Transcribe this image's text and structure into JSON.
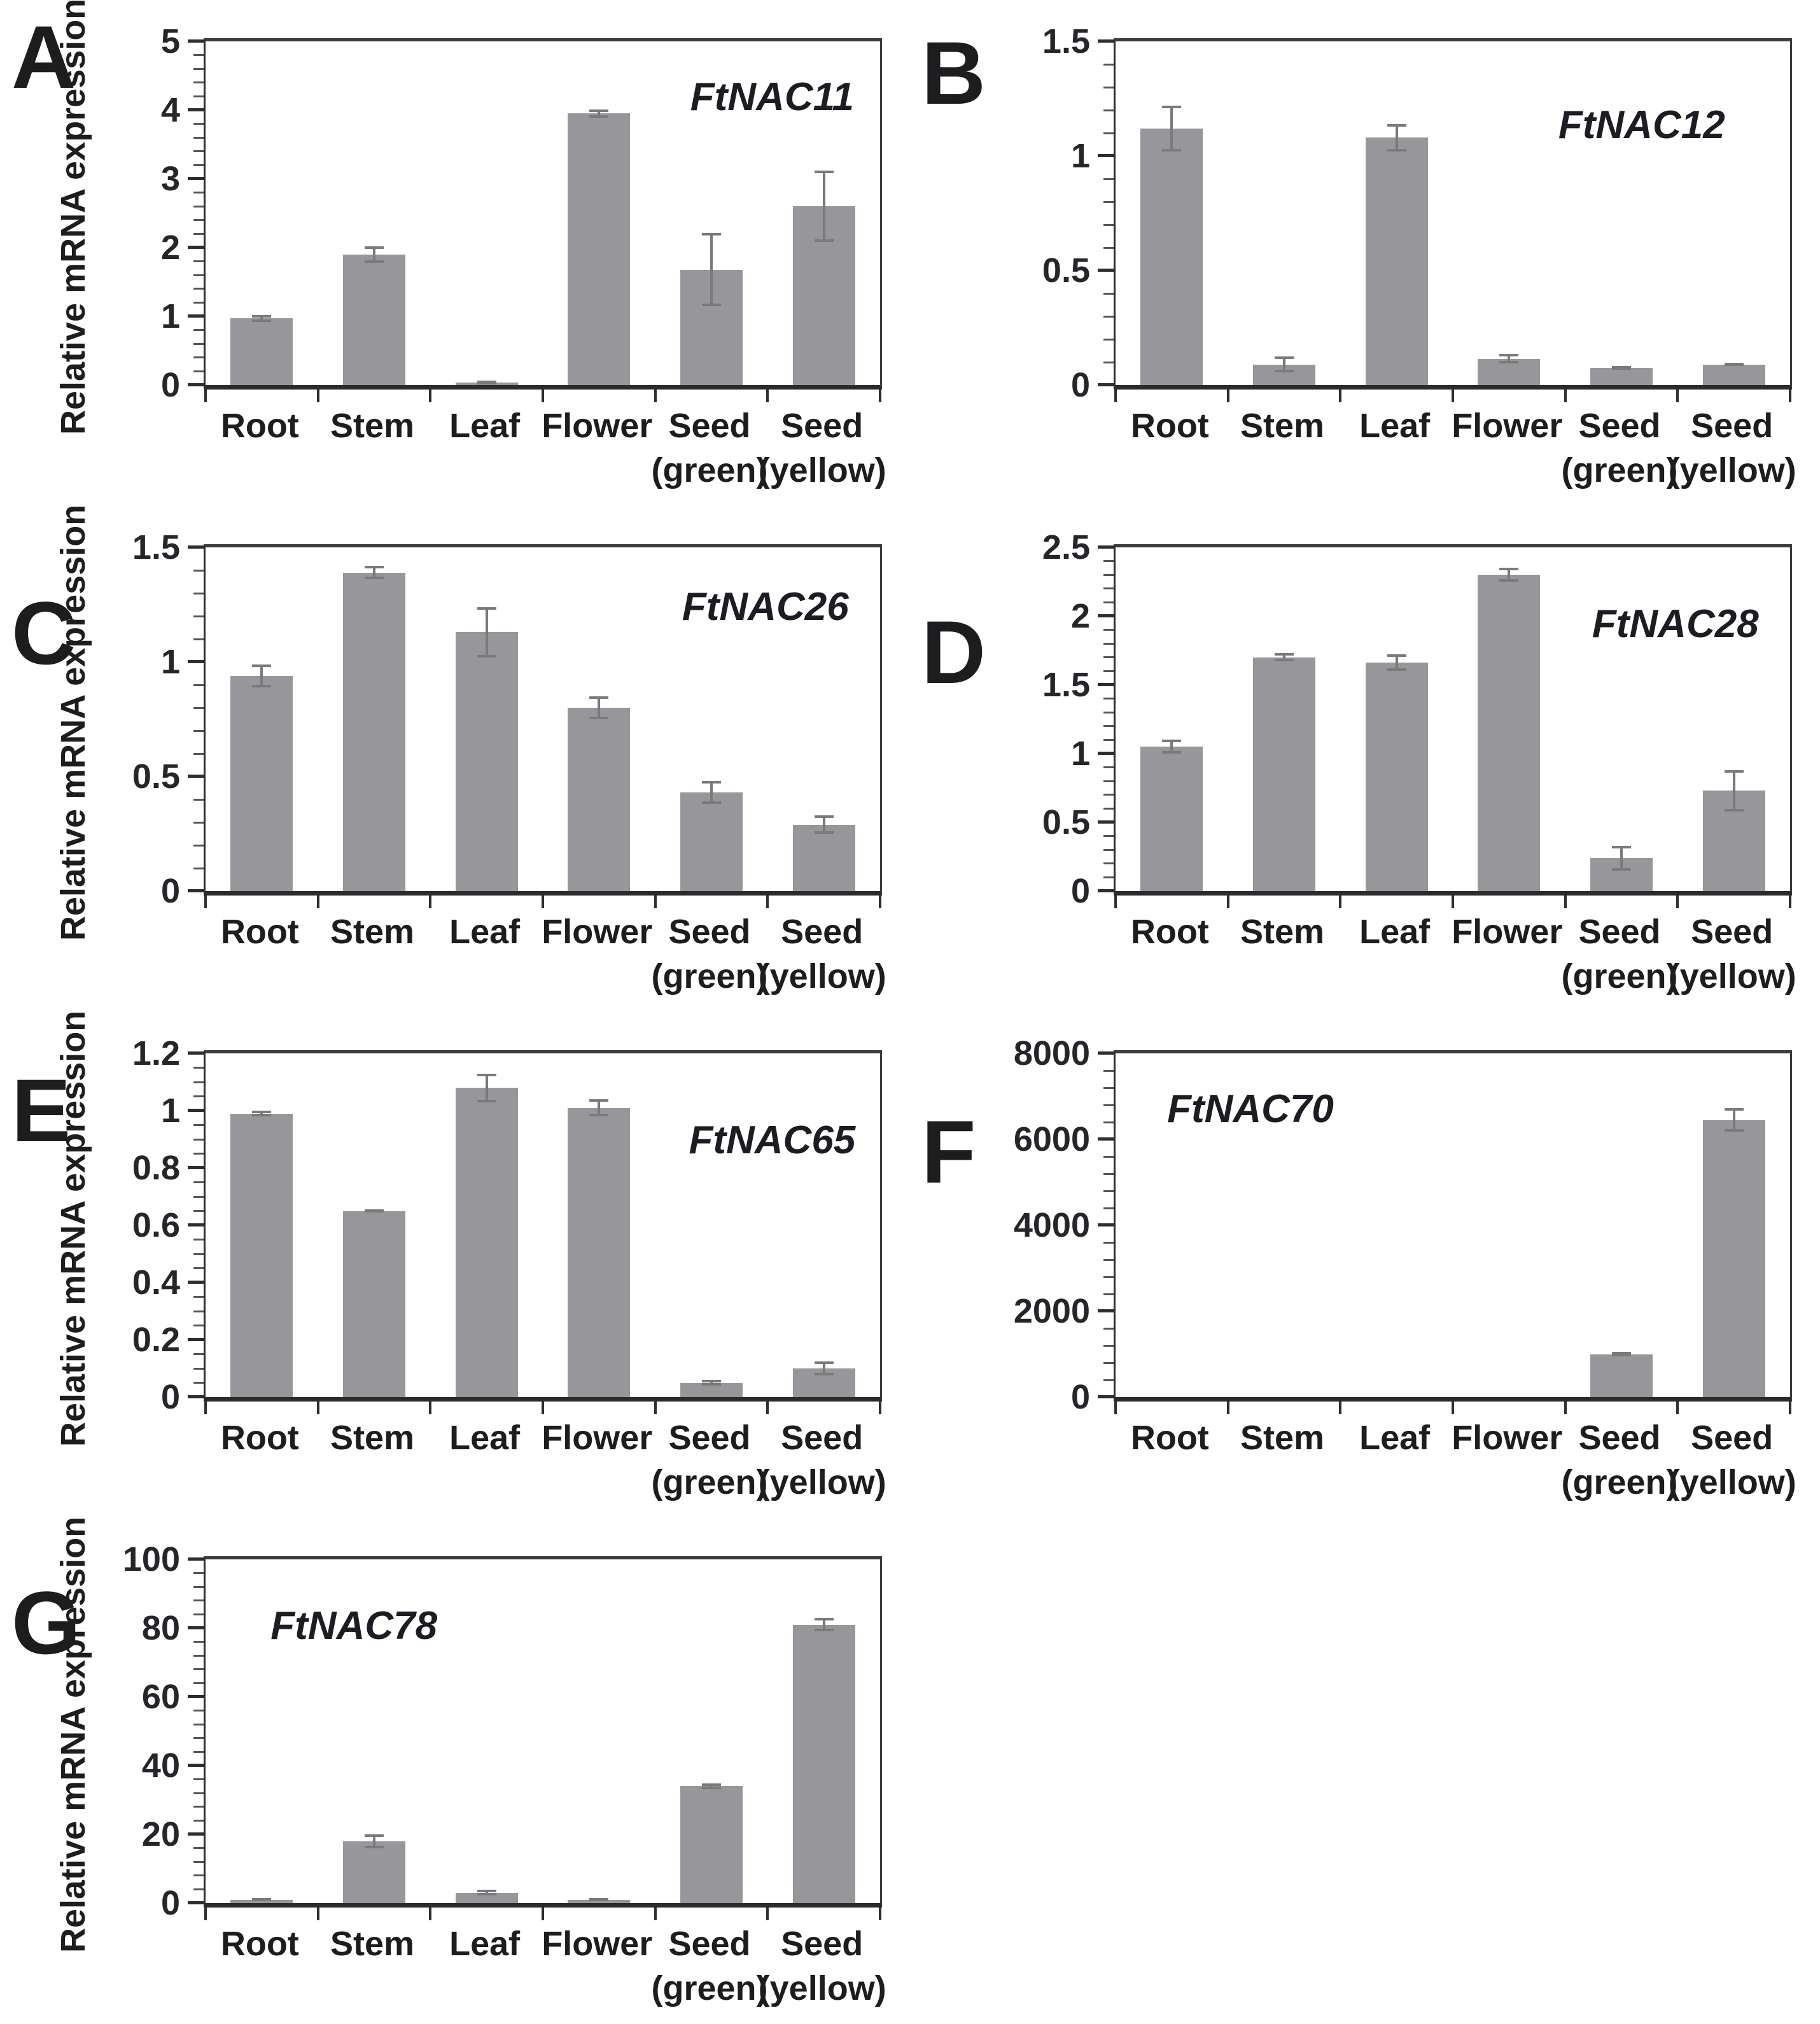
{
  "figure": {
    "y_axis_label": "Relative mRNA expression",
    "category_labels": [
      {
        "line1": "Root",
        "line2": ""
      },
      {
        "line1": "Stem",
        "line2": ""
      },
      {
        "line1": "Leaf",
        "line2": ""
      },
      {
        "line1": "Flower",
        "line2": ""
      },
      {
        "line1": "Seed",
        "line2": "(green)"
      },
      {
        "line1": "Seed",
        "line2": "(yellow)"
      }
    ],
    "colors": {
      "bar": "#97979b",
      "error_bar": "#7a7a7a",
      "axis": "#2e2e2e",
      "text": "#1d1d1f"
    }
  },
  "chart_data": [
    {
      "type": "bar",
      "panel": "A",
      "title": "FtNAC11",
      "ylabel": "Relative mRNA expression",
      "show_ylabel": true,
      "xlabel": "",
      "ylim": [
        0,
        5
      ],
      "ytick_values": [
        0,
        1,
        2,
        3,
        4,
        5
      ],
      "ytick_labels": [
        "0",
        "1",
        "2",
        "3",
        "4",
        "5"
      ],
      "minors_between": 4,
      "title_x": 0.84,
      "title_y": 0.16,
      "categories": [
        "Root",
        "Stem",
        "Leaf",
        "Flower",
        "Seed (green)",
        "Seed (yellow)"
      ],
      "values": [
        0.97,
        1.9,
        0.04,
        3.95,
        1.68,
        2.6
      ],
      "errors": [
        0.05,
        0.12,
        0.01,
        0.06,
        0.53,
        0.52
      ]
    },
    {
      "type": "bar",
      "panel": "B",
      "title": "FtNAC12",
      "ylabel": "Relative mRNA expression",
      "show_ylabel": false,
      "xlabel": "",
      "ylim": [
        0,
        1.5
      ],
      "ytick_values": [
        0,
        0.5,
        1,
        1.5
      ],
      "ytick_labels": [
        "0",
        "0.5",
        "1",
        "1.5"
      ],
      "minors_between": 4,
      "title_x": 0.78,
      "title_y": 0.24,
      "categories": [
        "Root",
        "Stem",
        "Leaf",
        "Flower",
        "Seed (green)",
        "Seed (yellow)"
      ],
      "values": [
        1.12,
        0.09,
        1.08,
        0.115,
        0.075,
        0.09
      ],
      "errors": [
        0.1,
        0.035,
        0.06,
        0.02,
        0.008,
        0.006
      ]
    },
    {
      "type": "bar",
      "panel": "C",
      "title": "FtNAC26",
      "ylabel": "Relative mRNA expression",
      "show_ylabel": true,
      "xlabel": "",
      "ylim": [
        0,
        1.5
      ],
      "ytick_values": [
        0,
        0.5,
        1,
        1.5
      ],
      "ytick_labels": [
        "0",
        "0.5",
        "1",
        "1.5"
      ],
      "minors_between": 4,
      "title_x": 0.83,
      "title_y": 0.17,
      "categories": [
        "Root",
        "Stem",
        "Leaf",
        "Flower",
        "Seed (green)",
        "Seed (yellow)"
      ],
      "values": [
        0.94,
        1.39,
        1.13,
        0.8,
        0.43,
        0.29
      ],
      "errors": [
        0.05,
        0.03,
        0.11,
        0.05,
        0.05,
        0.04
      ]
    },
    {
      "type": "bar",
      "panel": "D",
      "title": "FtNAC28",
      "ylabel": "Relative mRNA expression",
      "show_ylabel": false,
      "xlabel": "",
      "ylim": [
        0,
        2.5
      ],
      "ytick_values": [
        0,
        0.5,
        1,
        1.5,
        2,
        2.5
      ],
      "ytick_labels": [
        "0",
        "0.5",
        "1",
        "1.5",
        "2",
        "2.5"
      ],
      "minors_between": 4,
      "title_x": 0.83,
      "title_y": 0.22,
      "categories": [
        "Root",
        "Stem",
        "Leaf",
        "Flower",
        "Seed (green)",
        "Seed (yellow)"
      ],
      "values": [
        1.05,
        1.7,
        1.66,
        2.3,
        0.24,
        0.73
      ],
      "errors": [
        0.05,
        0.03,
        0.06,
        0.05,
        0.09,
        0.15
      ]
    },
    {
      "type": "bar",
      "panel": "E",
      "title": "FtNAC65",
      "ylabel": "Relative mRNA expression",
      "show_ylabel": true,
      "xlabel": "",
      "ylim": [
        0,
        1.2
      ],
      "ytick_values": [
        0,
        0.2,
        0.4,
        0.6,
        0.8,
        1,
        1.2
      ],
      "ytick_labels": [
        "0",
        "0.2",
        "0.4",
        "0.6",
        "0.8",
        "1",
        "1.2"
      ],
      "minors_between": 3,
      "title_x": 0.84,
      "title_y": 0.25,
      "categories": [
        "Root",
        "Stem",
        "Leaf",
        "Flower",
        "Seed (green)",
        "Seed (yellow)"
      ],
      "values": [
        0.99,
        0.65,
        1.08,
        1.01,
        0.05,
        0.1
      ],
      "errors": [
        0.01,
        0.005,
        0.05,
        0.03,
        0.01,
        0.025
      ]
    },
    {
      "type": "bar",
      "panel": "F",
      "title": "FtNAC70",
      "ylabel": "Relative mRNA expression",
      "show_ylabel": false,
      "xlabel": "",
      "ylim": [
        0,
        8000
      ],
      "ytick_values": [
        0,
        2000,
        4000,
        6000,
        8000
      ],
      "ytick_labels": [
        "0",
        "2000",
        "4000",
        "6000",
        "8000"
      ],
      "minors_between": 4,
      "title_x": 0.2,
      "title_y": 0.16,
      "categories": [
        "Root",
        "Stem",
        "Leaf",
        "Flower",
        "Seed (green)",
        "Seed (yellow)"
      ],
      "values": [
        0,
        0,
        0,
        0,
        1000,
        6450
      ],
      "errors": [
        0,
        0,
        0,
        0,
        50,
        270
      ]
    },
    {
      "type": "bar",
      "panel": "G",
      "title": "FtNAC78",
      "ylabel": "Relative mRNA expression",
      "show_ylabel": true,
      "xlabel": "",
      "ylim": [
        0,
        100
      ],
      "ytick_values": [
        0,
        20,
        40,
        60,
        80,
        100
      ],
      "ytick_labels": [
        "0",
        "20",
        "40",
        "60",
        "80",
        "100"
      ],
      "minors_between": 4,
      "title_x": 0.22,
      "title_y": 0.19,
      "categories": [
        "Root",
        "Stem",
        "Leaf",
        "Flower",
        "Seed (green)",
        "Seed (yellow)"
      ],
      "values": [
        1,
        18,
        3,
        1,
        34,
        81
      ],
      "errors": [
        0.4,
        2,
        0.8,
        0.3,
        0.8,
        2
      ]
    }
  ]
}
